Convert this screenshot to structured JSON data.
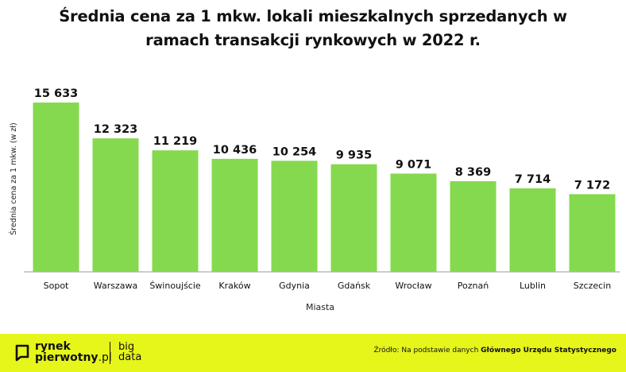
{
  "chart_data": {
    "type": "bar",
    "title_lines": [
      "Średnia cena za 1 mkw. lokali mieszkalnych sprzedanych w",
      "ramach transakcji rynkowych w 2022 r."
    ],
    "xlabel": "Miasta",
    "ylabel": "Średnia cena za 1 mkw. (w zł)",
    "categories": [
      "Sopot",
      "Warszawa",
      "Świnoujście",
      "Kraków",
      "Gdynia",
      "Gdańsk",
      "Wrocław",
      "Poznań",
      "Lublin",
      "Szczecin"
    ],
    "values": [
      15633,
      12323,
      11219,
      10436,
      10254,
      9935,
      9071,
      8369,
      7714,
      7172
    ],
    "value_labels": [
      "15 633",
      "12 323",
      "11 219",
      "10 436",
      "10 254",
      "9 935",
      "9 071",
      "8 369",
      "7 714",
      "7 172"
    ],
    "ylim": [
      0,
      15633
    ],
    "grid": false,
    "legend": "none",
    "bar_color": "#85d94e"
  },
  "footer": {
    "brand_line1": "rynek",
    "brand_line2": "pierwotny",
    "brand_suffix": ".pl",
    "partner_line1": "big",
    "partner_line2": "data",
    "source_prefix": "Źródło: Na podstawie danych ",
    "source_bold": "Głównego Urzędu Statystycznego",
    "background": "#e6f51a"
  }
}
